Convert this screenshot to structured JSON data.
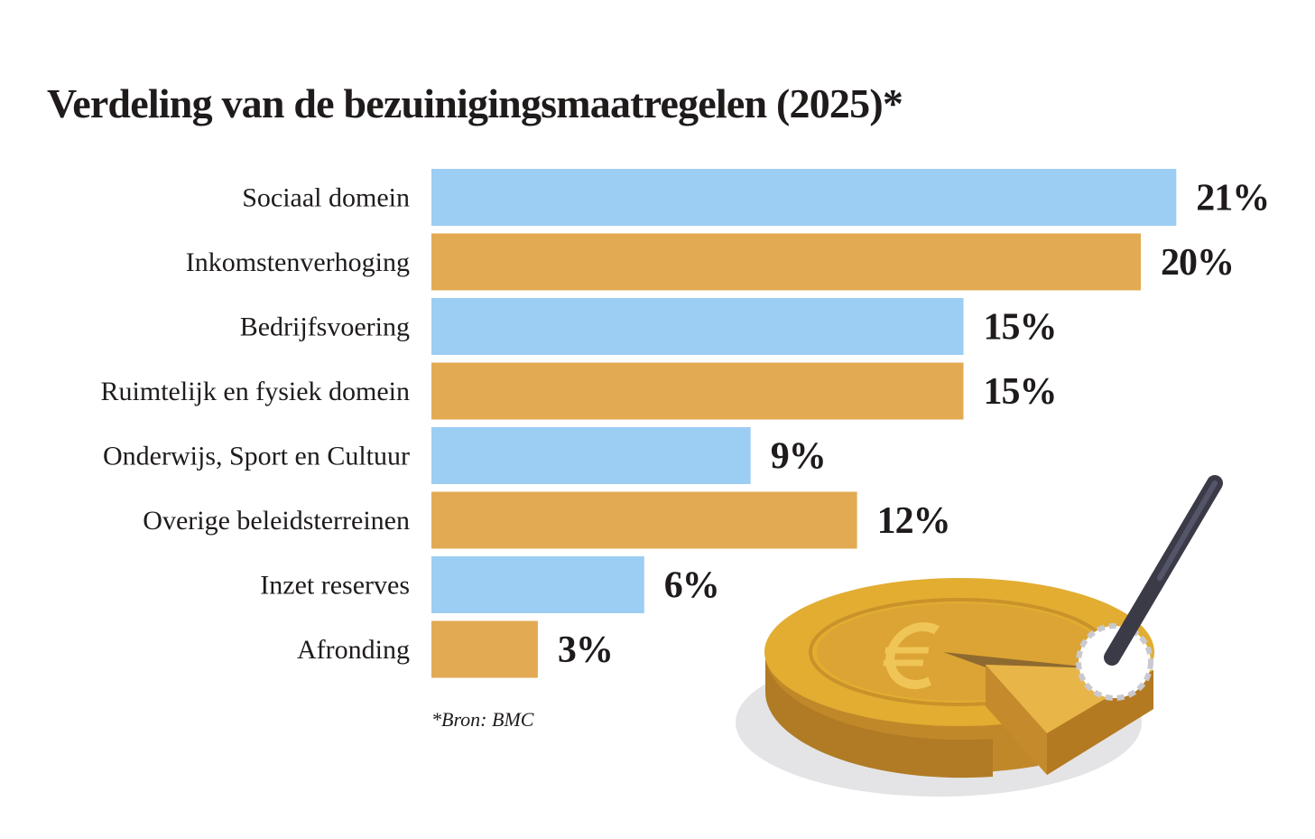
{
  "title": "Verdeling van de bezuinigingsmaatregelen (2025)*",
  "source": "*Bron: BMC",
  "colors": {
    "blue": "#9ccdf3",
    "orange": "#e3aa54"
  },
  "icons": [
    "coin-pie-illustration"
  ],
  "chart_data": {
    "type": "bar",
    "orientation": "horizontal",
    "title": "Verdeling van de bezuinigingsmaatregelen (2025)*",
    "xlabel": "",
    "ylabel": "",
    "unit": "%",
    "grid": false,
    "categories": [
      "Sociaal domein",
      "Inkomstenverhoging",
      "Bedrijfsvoering",
      "Ruimtelijk en fysiek domein",
      "Onderwijs, Sport en Cultuur",
      "Overige beleidsterreinen",
      "Inzet reserves",
      "Afronding"
    ],
    "values": [
      21,
      20,
      15,
      15,
      9,
      12,
      6,
      3
    ],
    "value_labels": [
      "21%",
      "20%",
      "15%",
      "15%",
      "9%",
      "12%",
      "6%",
      "3%"
    ],
    "bar_colors": [
      "#9ccdf3",
      "#e3aa54",
      "#9ccdf3",
      "#e3aa54",
      "#9ccdf3",
      "#e3aa54",
      "#9ccdf3",
      "#e3aa54"
    ]
  }
}
